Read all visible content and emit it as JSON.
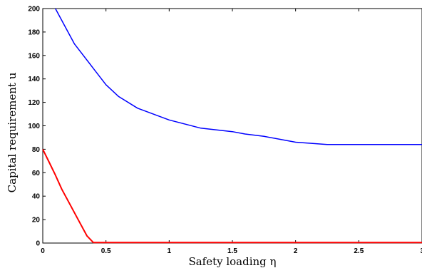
{
  "chart_data": {
    "type": "line",
    "title": "",
    "xlabel": "Safety loading η",
    "ylabel": "Capital requirement u",
    "xlim": [
      0,
      3
    ],
    "ylim": [
      0,
      200
    ],
    "grid": false,
    "x_ticks": [
      0,
      0.5,
      1,
      1.5,
      2,
      2.5,
      3
    ],
    "x_tick_labels": [
      "0",
      "0.5",
      "1",
      "1.5",
      "2",
      "2.5",
      "3"
    ],
    "y_ticks": [
      0,
      20,
      40,
      60,
      80,
      100,
      120,
      140,
      160,
      180,
      200
    ],
    "y_tick_labels": [
      "0",
      "20",
      "40",
      "60",
      "80",
      "100",
      "120",
      "140",
      "160",
      "180",
      "200"
    ],
    "series": [
      {
        "color": "#0000ff",
        "x": [
          0.1,
          0.25,
          0.4,
          0.5,
          0.6,
          0.75,
          1.0,
          1.25,
          1.5,
          1.6,
          1.75,
          2.0,
          2.25,
          2.5,
          2.75,
          3.0
        ],
        "y": [
          200,
          170,
          149,
          135,
          125,
          115,
          105,
          98,
          95,
          93,
          91,
          86,
          84,
          84,
          84,
          84
        ]
      },
      {
        "color": "#ff0000",
        "x": [
          0.0,
          0.05,
          0.1,
          0.15,
          0.2,
          0.25,
          0.3,
          0.35,
          0.4,
          0.42,
          0.5,
          1.0,
          2.0,
          3.0
        ],
        "y": [
          80,
          69,
          58,
          46,
          36,
          26,
          16,
          6,
          0.5,
          0.5,
          0.5,
          0.5,
          0.5,
          0.5
        ]
      }
    ]
  }
}
